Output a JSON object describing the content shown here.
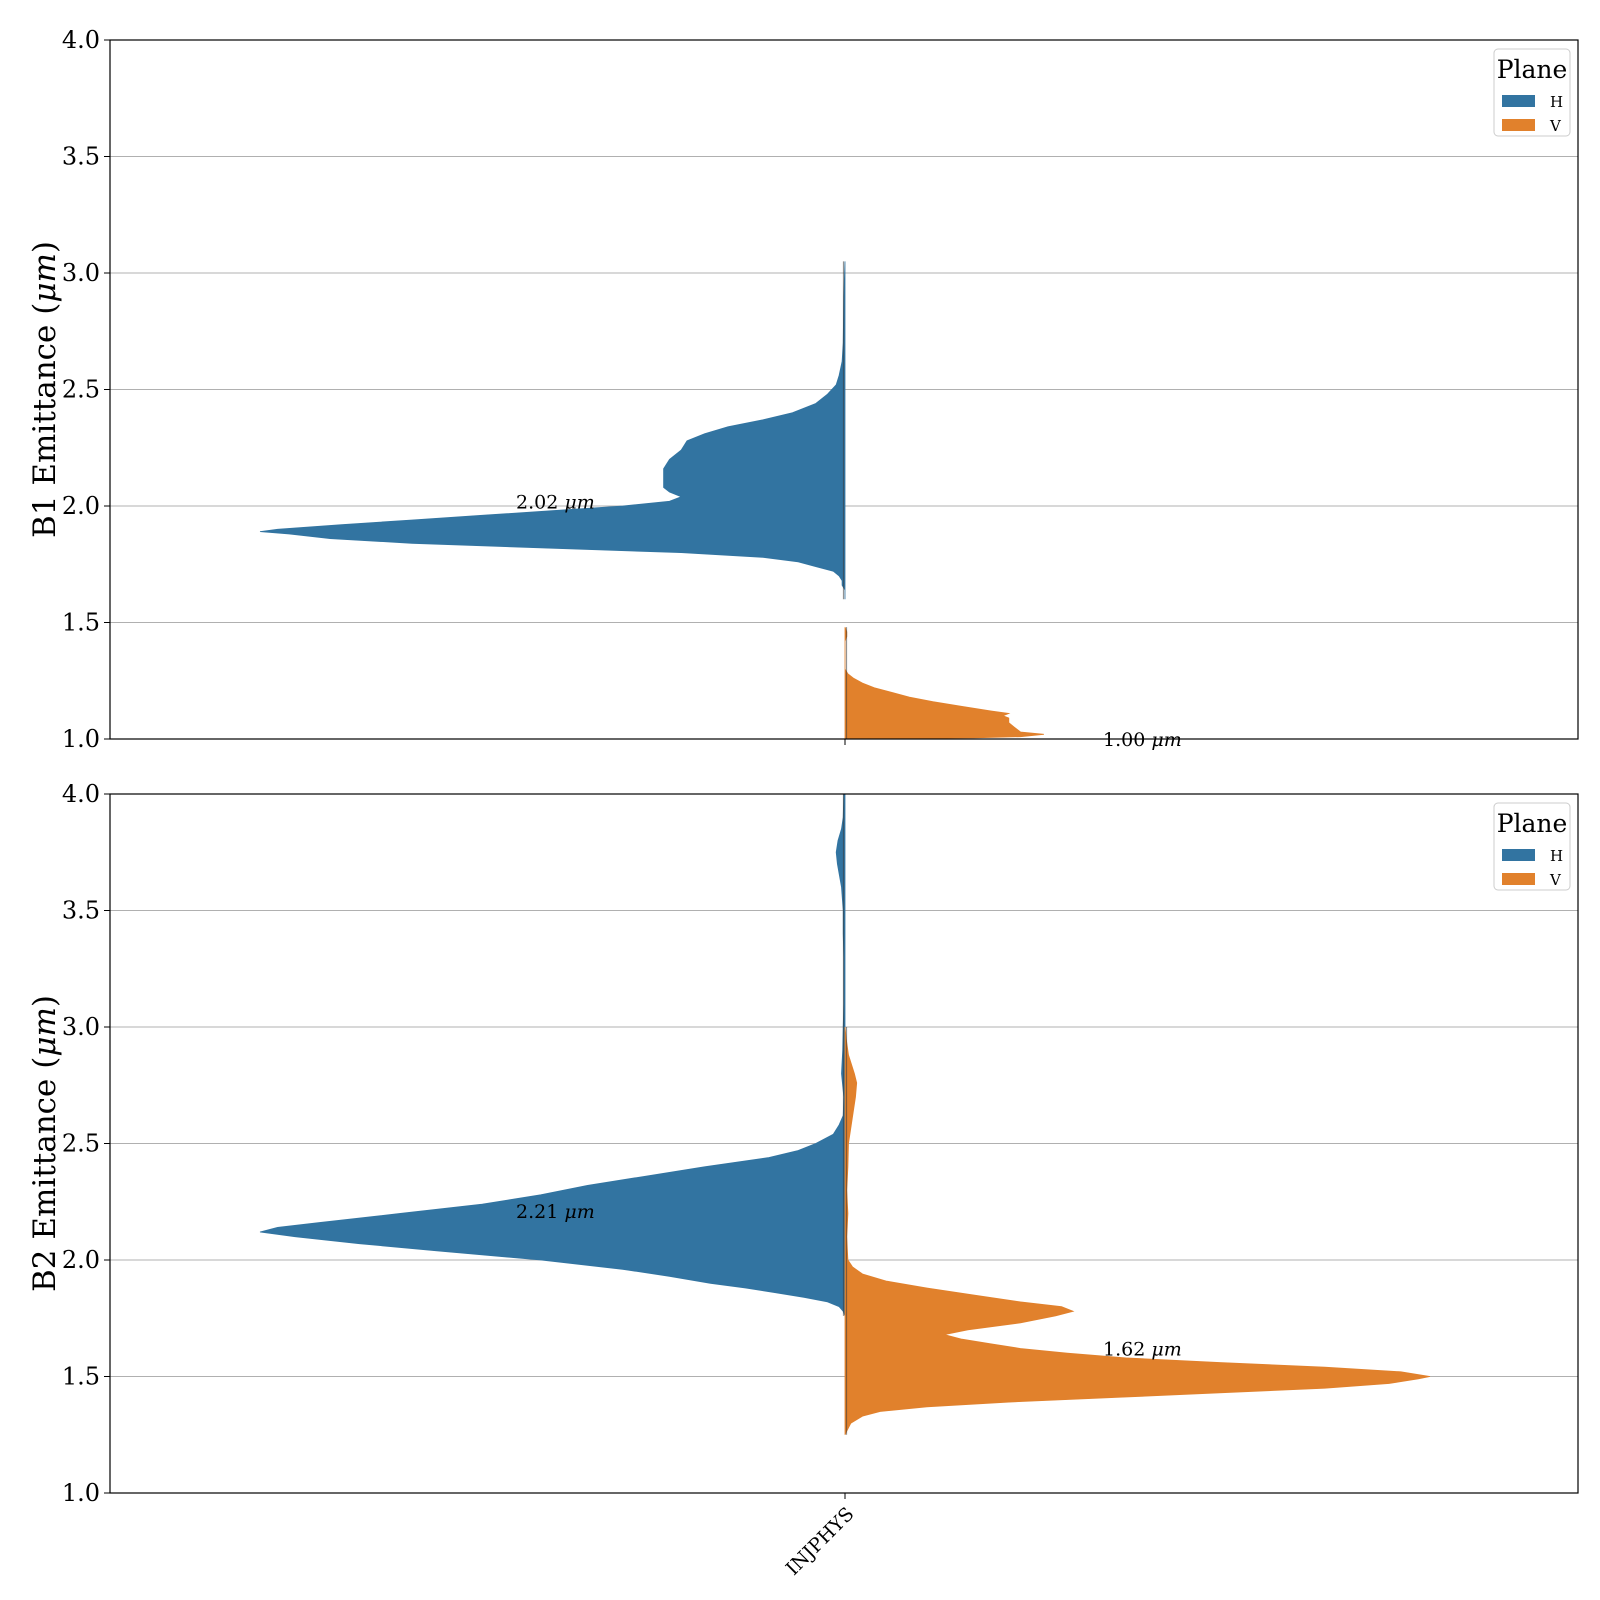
{
  "chart_data": [
    {
      "type": "violin",
      "split": true,
      "ylabel": "B1 Emittance (μm)",
      "ylabel_main": "B1 Emittance (",
      "ylabel_unit": "μm",
      "ylabel_close": ")",
      "ylim": [
        1.0,
        4.0
      ],
      "yticks": [
        "1.0",
        "1.5",
        "2.0",
        "2.5",
        "3.0",
        "3.5",
        "4.0"
      ],
      "ytick_values": [
        1.0,
        1.5,
        2.0,
        2.5,
        3.0,
        3.5,
        4.0
      ],
      "grid": "horizontal",
      "categories": [
        "INJPHYS"
      ],
      "legend": {
        "title": "Plane",
        "placement": "top-right",
        "entries": [
          {
            "label": "H",
            "color": "#3274a1"
          },
          {
            "label": "V",
            "color": "#e1812c"
          }
        ]
      },
      "series": [
        {
          "name": "H",
          "color": "#3274a1",
          "side": "left",
          "median": 2.02,
          "annotation_value": "2.02",
          "annotation_unit": "μm",
          "density": [
            [
              1.6,
              0.0
            ],
            [
              1.62,
              0.0
            ],
            [
              1.64,
              0.0
            ],
            [
              1.66,
              0.005
            ],
            [
              1.68,
              0.005
            ],
            [
              1.7,
              0.01
            ],
            [
              1.72,
              0.02
            ],
            [
              1.74,
              0.05
            ],
            [
              1.76,
              0.08
            ],
            [
              1.78,
              0.14
            ],
            [
              1.8,
              0.28
            ],
            [
              1.82,
              0.52
            ],
            [
              1.84,
              0.74
            ],
            [
              1.86,
              0.88
            ],
            [
              1.88,
              0.95
            ],
            [
              1.89,
              1.0
            ],
            [
              1.9,
              0.97
            ],
            [
              1.92,
              0.86
            ],
            [
              1.94,
              0.74
            ],
            [
              1.96,
              0.62
            ],
            [
              1.98,
              0.5
            ],
            [
              2.0,
              0.38
            ],
            [
              2.02,
              0.3
            ],
            [
              2.04,
              0.28
            ],
            [
              2.06,
              0.3
            ],
            [
              2.08,
              0.31
            ],
            [
              2.1,
              0.31
            ],
            [
              2.12,
              0.31
            ],
            [
              2.16,
              0.31
            ],
            [
              2.2,
              0.3
            ],
            [
              2.24,
              0.28
            ],
            [
              2.28,
              0.27
            ],
            [
              2.31,
              0.24
            ],
            [
              2.34,
              0.2
            ],
            [
              2.37,
              0.14
            ],
            [
              2.4,
              0.09
            ],
            [
              2.44,
              0.05
            ],
            [
              2.48,
              0.03
            ],
            [
              2.52,
              0.015
            ],
            [
              2.56,
              0.01
            ],
            [
              2.62,
              0.005
            ],
            [
              2.7,
              0.003
            ],
            [
              2.9,
              0.002
            ],
            [
              3.05,
              0.0
            ]
          ]
        },
        {
          "name": "V",
          "color": "#e1812c",
          "side": "right",
          "median": 1.0,
          "annotation_value": "1.00",
          "annotation_unit": "μm",
          "density": [
            [
              1.0,
              0.0
            ],
            [
              1.002,
              0.1
            ],
            [
              1.005,
              0.22
            ],
            [
              1.01,
              0.3
            ],
            [
              1.02,
              0.34
            ],
            [
              1.03,
              0.3
            ],
            [
              1.05,
              0.29
            ],
            [
              1.07,
              0.28
            ],
            [
              1.09,
              0.28
            ],
            [
              1.1,
              0.27
            ],
            [
              1.11,
              0.28
            ],
            [
              1.12,
              0.25
            ],
            [
              1.14,
              0.2
            ],
            [
              1.16,
              0.15
            ],
            [
              1.18,
              0.11
            ],
            [
              1.2,
              0.08
            ],
            [
              1.22,
              0.05
            ],
            [
              1.24,
              0.03
            ],
            [
              1.26,
              0.015
            ],
            [
              1.28,
              0.005
            ],
            [
              1.3,
              0.0
            ],
            [
              1.42,
              0.0
            ],
            [
              1.44,
              0.003
            ],
            [
              1.46,
              0.003
            ],
            [
              1.48,
              0.0
            ]
          ]
        }
      ]
    },
    {
      "type": "violin",
      "split": true,
      "ylabel": "B2 Emittance (μm)",
      "ylabel_main": "B2 Emittance (",
      "ylabel_unit": "μm",
      "ylabel_close": ")",
      "ylim": [
        1.0,
        4.0
      ],
      "yticks": [
        "1.0",
        "1.5",
        "2.0",
        "2.5",
        "3.0",
        "3.5",
        "4.0"
      ],
      "ytick_values": [
        1.0,
        1.5,
        2.0,
        2.5,
        3.0,
        3.5,
        4.0
      ],
      "grid": "horizontal",
      "categories": [
        "INJPHYS"
      ],
      "xtick_label": "INJPHYS",
      "legend": {
        "title": "Plane",
        "placement": "top-right",
        "entries": [
          {
            "label": "H",
            "color": "#3274a1"
          },
          {
            "label": "V",
            "color": "#e1812c"
          }
        ]
      },
      "series": [
        {
          "name": "H",
          "color": "#3274a1",
          "side": "left",
          "median": 2.21,
          "annotation_value": "2.21",
          "annotation_unit": "μm",
          "density": [
            [
              1.76,
              0.0
            ],
            [
              1.78,
              0.003
            ],
            [
              1.8,
              0.01
            ],
            [
              1.82,
              0.03
            ],
            [
              1.84,
              0.07
            ],
            [
              1.86,
              0.12
            ],
            [
              1.88,
              0.17
            ],
            [
              1.9,
              0.23
            ],
            [
              1.93,
              0.3
            ],
            [
              1.96,
              0.38
            ],
            [
              2.0,
              0.52
            ],
            [
              2.04,
              0.7
            ],
            [
              2.07,
              0.83
            ],
            [
              2.1,
              0.94
            ],
            [
              2.12,
              1.0
            ],
            [
              2.14,
              0.97
            ],
            [
              2.16,
              0.9
            ],
            [
              2.2,
              0.76
            ],
            [
              2.24,
              0.62
            ],
            [
              2.28,
              0.52
            ],
            [
              2.32,
              0.44
            ],
            [
              2.36,
              0.34
            ],
            [
              2.4,
              0.24
            ],
            [
              2.44,
              0.13
            ],
            [
              2.47,
              0.08
            ],
            [
              2.5,
              0.05
            ],
            [
              2.54,
              0.02
            ],
            [
              2.58,
              0.01
            ],
            [
              2.62,
              0.003
            ],
            [
              2.7,
              0.002
            ],
            [
              2.8,
              0.006
            ],
            [
              2.9,
              0.004
            ],
            [
              3.0,
              0.003
            ],
            [
              3.1,
              0.002
            ],
            [
              3.2,
              0.002
            ],
            [
              3.3,
              0.002
            ],
            [
              3.4,
              0.003
            ],
            [
              3.5,
              0.003
            ],
            [
              3.6,
              0.006
            ],
            [
              3.7,
              0.013
            ],
            [
              3.75,
              0.015
            ],
            [
              3.8,
              0.012
            ],
            [
              3.85,
              0.006
            ],
            [
              3.9,
              0.003
            ],
            [
              4.0,
              0.002
            ]
          ]
        },
        {
          "name": "V",
          "color": "#e1812c",
          "side": "right",
          "median": 1.62,
          "annotation_value": "1.62",
          "annotation_unit": "μm",
          "density": [
            [
              1.25,
              0.0
            ],
            [
              1.27,
              0.004
            ],
            [
              1.3,
              0.01
            ],
            [
              1.33,
              0.03
            ],
            [
              1.35,
              0.06
            ],
            [
              1.37,
              0.14
            ],
            [
              1.39,
              0.28
            ],
            [
              1.41,
              0.46
            ],
            [
              1.43,
              0.64
            ],
            [
              1.45,
              0.82
            ],
            [
              1.47,
              0.93
            ],
            [
              1.49,
              0.98
            ],
            [
              1.5,
              1.0
            ],
            [
              1.52,
              0.95
            ],
            [
              1.54,
              0.82
            ],
            [
              1.56,
              0.64
            ],
            [
              1.58,
              0.48
            ],
            [
              1.6,
              0.38
            ],
            [
              1.62,
              0.3
            ],
            [
              1.64,
              0.25
            ],
            [
              1.66,
              0.2
            ],
            [
              1.68,
              0.17
            ],
            [
              1.7,
              0.21
            ],
            [
              1.73,
              0.3
            ],
            [
              1.76,
              0.36
            ],
            [
              1.78,
              0.39
            ],
            [
              1.8,
              0.37
            ],
            [
              1.82,
              0.3
            ],
            [
              1.85,
              0.22
            ],
            [
              1.88,
              0.14
            ],
            [
              1.91,
              0.07
            ],
            [
              1.94,
              0.03
            ],
            [
              1.97,
              0.013
            ],
            [
              2.0,
              0.005
            ],
            [
              2.05,
              0.004
            ],
            [
              2.1,
              0.003
            ],
            [
              2.2,
              0.005
            ],
            [
              2.25,
              0.004
            ],
            [
              2.3,
              0.003
            ],
            [
              2.4,
              0.005
            ],
            [
              2.5,
              0.006
            ],
            [
              2.6,
              0.012
            ],
            [
              2.7,
              0.018
            ],
            [
              2.76,
              0.02
            ],
            [
              2.8,
              0.016
            ],
            [
              2.88,
              0.006
            ],
            [
              2.95,
              0.002
            ],
            [
              3.0,
              0.0
            ]
          ]
        }
      ]
    }
  ]
}
